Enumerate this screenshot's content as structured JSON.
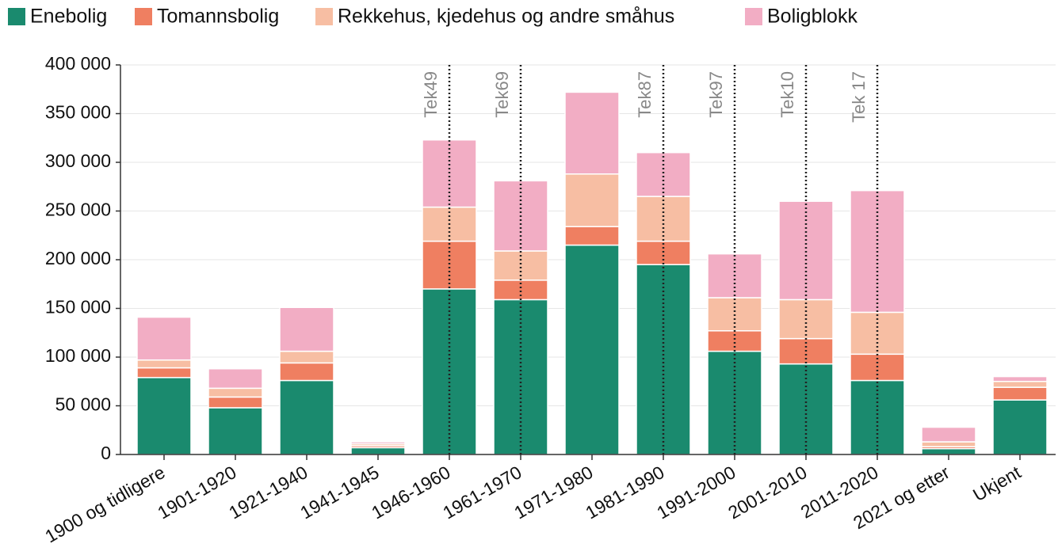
{
  "chart_data": {
    "type": "stacked_bar",
    "categories": [
      "1900 og tidligere",
      "1901-1920",
      "1921-1940",
      "1941-1945",
      "1946-1960",
      "1961-1970",
      "1971-1980",
      "1981-1990",
      "1991-2000",
      "2001-2010",
      "2011-2020",
      "2021 og etter",
      "Ukjent"
    ],
    "series": [
      {
        "name": "Enebolig",
        "color": "#1a8a6e",
        "values": [
          79000,
          48000,
          76000,
          7000,
          170000,
          159000,
          215000,
          195000,
          106000,
          93000,
          76000,
          6000,
          56000
        ]
      },
      {
        "name": "Tomannsbolig",
        "color": "#ef7f61",
        "values": [
          10000,
          11000,
          18000,
          2000,
          49000,
          20000,
          19000,
          24000,
          21000,
          26000,
          27000,
          2000,
          13000
        ]
      },
      {
        "name": "Rekkehus, kjedehus og andre småhus",
        "color": "#f7bea3",
        "values": [
          8000,
          9000,
          12000,
          2000,
          35000,
          30000,
          54000,
          46000,
          34000,
          40000,
          43000,
          5000,
          6000
        ]
      },
      {
        "name": "Boligblokk",
        "color": "#f2adc4",
        "values": [
          44000,
          20000,
          45000,
          2000,
          69000,
          72000,
          84000,
          45000,
          45000,
          101000,
          125000,
          15000,
          5000
        ]
      }
    ],
    "ylim": [
      0,
      400000
    ],
    "yticks": [
      0,
      {
        "value": 50000,
        "label": "50 000"
      },
      {
        "value": 100000,
        "label": "100 000"
      },
      {
        "value": 150000,
        "label": "150 000"
      },
      {
        "value": 200000,
        "label": "200 000"
      },
      {
        "value": 250000,
        "label": "250 000"
      },
      {
        "value": 300000,
        "label": "300 000"
      },
      {
        "value": 350000,
        "label": "350 000"
      },
      {
        "value": 400000,
        "label": "400 000"
      }
    ],
    "grid": true,
    "legend": "top-left",
    "annotations": [
      {
        "text": "Tek49",
        "x": "1946-1960"
      },
      {
        "text": "Tek69",
        "x": "1961-1970"
      },
      {
        "text": "Tek87",
        "x": "1981-1990"
      },
      {
        "text": "Tek97",
        "x": "1991-2000"
      },
      {
        "text": "Tek10",
        "x": "2001-2010"
      },
      {
        "text": "Tek 17",
        "x": "2011-2020"
      }
    ]
  }
}
